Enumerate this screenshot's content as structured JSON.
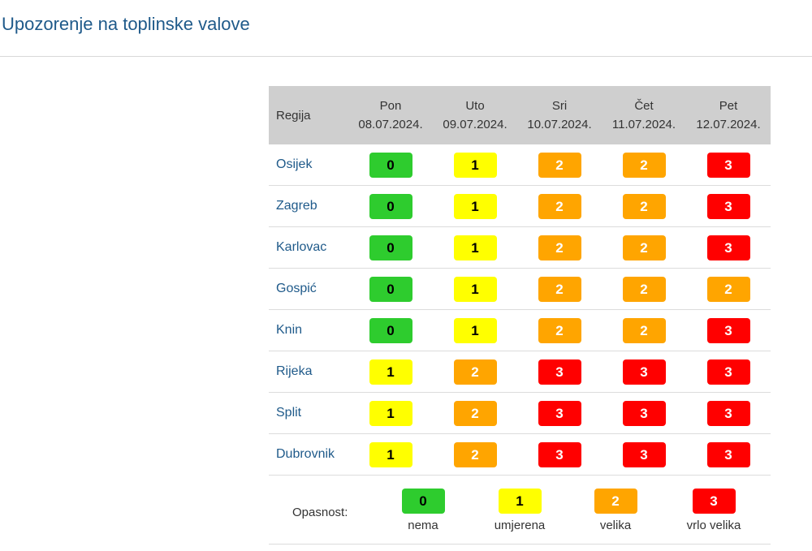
{
  "title": "Upozorenje na toplinske valove",
  "table": {
    "region_header": "Regija",
    "days": [
      {
        "name": "Pon",
        "date": "08.07.2024."
      },
      {
        "name": "Uto",
        "date": "09.07.2024."
      },
      {
        "name": "Sri",
        "date": "10.07.2024."
      },
      {
        "name": "Čet",
        "date": "11.07.2024."
      },
      {
        "name": "Pet",
        "date": "12.07.2024."
      }
    ],
    "rows": [
      {
        "region": "Osijek",
        "levels": [
          "0",
          "1",
          "2",
          "2",
          "3"
        ]
      },
      {
        "region": "Zagreb",
        "levels": [
          "0",
          "1",
          "2",
          "2",
          "3"
        ]
      },
      {
        "region": "Karlovac",
        "levels": [
          "0",
          "1",
          "2",
          "2",
          "3"
        ]
      },
      {
        "region": "Gospić",
        "levels": [
          "0",
          "1",
          "2",
          "2",
          "2"
        ]
      },
      {
        "region": "Knin",
        "levels": [
          "0",
          "1",
          "2",
          "2",
          "3"
        ]
      },
      {
        "region": "Rijeka",
        "levels": [
          "1",
          "2",
          "3",
          "3",
          "3"
        ]
      },
      {
        "region": "Split",
        "levels": [
          "1",
          "2",
          "3",
          "3",
          "3"
        ]
      },
      {
        "region": "Dubrovnik",
        "levels": [
          "1",
          "2",
          "3",
          "3",
          "3"
        ]
      }
    ]
  },
  "legend": {
    "label": "Opasnost:",
    "items": [
      {
        "level": "0",
        "text": "nema"
      },
      {
        "level": "1",
        "text": "umjerena"
      },
      {
        "level": "2",
        "text": "velika"
      },
      {
        "level": "3",
        "text": "vrlo velika"
      }
    ]
  },
  "colors": {
    "level_0": "#2ecc2e",
    "level_1": "#ffff00",
    "level_2": "#ffa500",
    "level_3": "#ff0000",
    "title": "#1f5a8a",
    "header_bg": "#cfcfcf"
  }
}
